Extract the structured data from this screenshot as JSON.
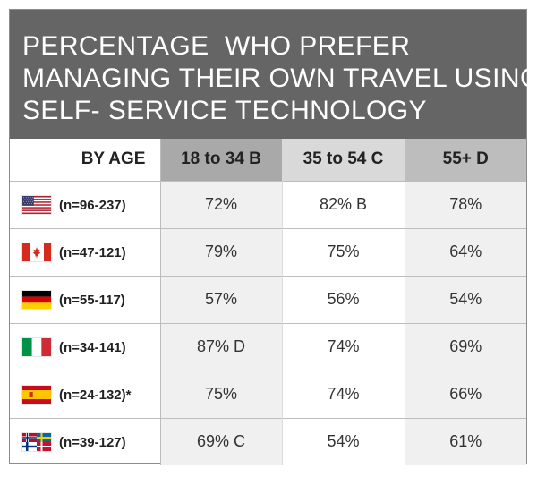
{
  "title_lines": [
    "PERCENTAGE  WHO PREFER",
    "MANAGING THEIR OWN TRAVEL USING",
    "SELF- SERVICE TECHNOLOGY"
  ],
  "colors": {
    "title_background": "#656565",
    "col_18_34_header": "#a9a9a9",
    "col_35_54_header": "#d9d9d9",
    "col_55_plus_header": "#bdbdbd"
  },
  "chart_data": {
    "type": "table",
    "row_header_label": "BY AGE",
    "columns": [
      "18 to 34 B",
      "35 to 54 C",
      "55+ D"
    ],
    "rows": [
      {
        "flag": "usa-flag-icon",
        "label": "(n=96-237)",
        "cells": [
          "72%",
          "82% B",
          "78%"
        ],
        "values": [
          72,
          82,
          78
        ]
      },
      {
        "flag": "canada-flag-icon",
        "label": "(n=47-121)",
        "cells": [
          "79%",
          "75%",
          "64%"
        ],
        "values": [
          79,
          75,
          64
        ]
      },
      {
        "flag": "germany-flag-icon",
        "label": "(n=55-117)",
        "cells": [
          "57%",
          "56%",
          "54%"
        ],
        "values": [
          57,
          56,
          54
        ]
      },
      {
        "flag": "italy-flag-icon",
        "label": "(n=34-141)",
        "cells": [
          "87% D",
          "74%",
          "69%"
        ],
        "values": [
          87,
          74,
          69
        ]
      },
      {
        "flag": "spain-flag-icon",
        "label": "(n=24-132)*",
        "cells": [
          "75%",
          "74%",
          "66%"
        ],
        "values": [
          75,
          74,
          66
        ]
      },
      {
        "flag": "nordic-flags-icon",
        "label": "(n=39-127)",
        "cells": [
          "69% C",
          "54%",
          "61%"
        ],
        "values": [
          69,
          54,
          61
        ]
      }
    ]
  }
}
